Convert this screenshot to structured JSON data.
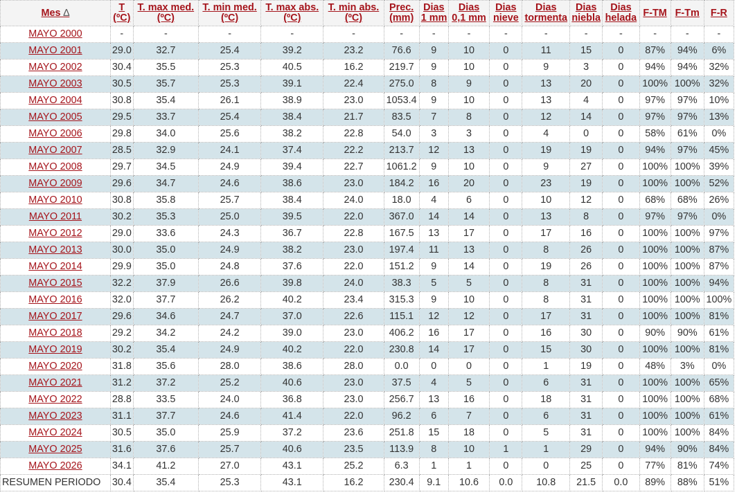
{
  "columns": [
    {
      "key": "mes",
      "l1": "Mes",
      "l2": "",
      "sort": "∆"
    },
    {
      "key": "t",
      "l1": "T",
      "l2": "(ºC)"
    },
    {
      "key": "tmaxmed",
      "l1": "T. max med.",
      "l2": "(ºC)"
    },
    {
      "key": "tminmed",
      "l1": "T. min med.",
      "l2": "(ºC)"
    },
    {
      "key": "tmaxabs",
      "l1": "T. max abs.",
      "l2": "(ºC)"
    },
    {
      "key": "tminabs",
      "l1": "T. min abs.",
      "l2": "(ºC)"
    },
    {
      "key": "prec",
      "l1": "Prec.",
      "l2": "(mm)"
    },
    {
      "key": "d1mm",
      "l1": "Dias",
      "l2": "1 mm"
    },
    {
      "key": "d01mm",
      "l1": "Dias",
      "l2": "0,1 mm"
    },
    {
      "key": "dnieve",
      "l1": "Dias",
      "l2": "nieve"
    },
    {
      "key": "dtormenta",
      "l1": "Dias",
      "l2": "tormenta"
    },
    {
      "key": "dniebla",
      "l1": "Dias",
      "l2": "niebla"
    },
    {
      "key": "dhelada",
      "l1": "Dias",
      "l2": "helada"
    },
    {
      "key": "ftm",
      "l1": "F-TM",
      "l2": ""
    },
    {
      "key": "ftm2",
      "l1": "F-Tm",
      "l2": ""
    },
    {
      "key": "fr",
      "l1": "F-R",
      "l2": ""
    }
  ],
  "rows": [
    [
      "MAYO 2000",
      "-",
      "-",
      "-",
      "-",
      "-",
      "-",
      "-",
      "-",
      "-",
      "-",
      "-",
      "-",
      "-",
      "-",
      "-"
    ],
    [
      "MAYO 2001",
      "29.0",
      "32.7",
      "25.4",
      "39.2",
      "23.2",
      "76.6",
      "9",
      "10",
      "0",
      "11",
      "15",
      "0",
      "87%",
      "94%",
      "6%"
    ],
    [
      "MAYO 2002",
      "30.4",
      "35.5",
      "25.3",
      "40.5",
      "16.2",
      "219.7",
      "9",
      "10",
      "0",
      "9",
      "3",
      "0",
      "94%",
      "94%",
      "32%"
    ],
    [
      "MAYO 2003",
      "30.5",
      "35.7",
      "25.3",
      "39.1",
      "22.4",
      "275.0",
      "8",
      "9",
      "0",
      "13",
      "20",
      "0",
      "100%",
      "100%",
      "32%"
    ],
    [
      "MAYO 2004",
      "30.8",
      "35.4",
      "26.1",
      "38.9",
      "23.0",
      "1053.4",
      "9",
      "10",
      "0",
      "13",
      "4",
      "0",
      "97%",
      "97%",
      "10%"
    ],
    [
      "MAYO 2005",
      "29.5",
      "33.7",
      "25.4",
      "38.4",
      "21.7",
      "83.5",
      "7",
      "8",
      "0",
      "12",
      "14",
      "0",
      "97%",
      "97%",
      "13%"
    ],
    [
      "MAYO 2006",
      "29.8",
      "34.0",
      "25.6",
      "38.2",
      "22.8",
      "54.0",
      "3",
      "3",
      "0",
      "4",
      "0",
      "0",
      "58%",
      "61%",
      "0%"
    ],
    [
      "MAYO 2007",
      "28.5",
      "32.9",
      "24.1",
      "37.4",
      "22.2",
      "213.7",
      "12",
      "13",
      "0",
      "19",
      "19",
      "0",
      "94%",
      "97%",
      "45%"
    ],
    [
      "MAYO 2008",
      "29.7",
      "34.5",
      "24.9",
      "39.4",
      "22.7",
      "1061.2",
      "9",
      "10",
      "0",
      "9",
      "27",
      "0",
      "100%",
      "100%",
      "39%"
    ],
    [
      "MAYO 2009",
      "29.6",
      "34.7",
      "24.6",
      "38.6",
      "23.0",
      "184.2",
      "16",
      "20",
      "0",
      "23",
      "19",
      "0",
      "100%",
      "100%",
      "52%"
    ],
    [
      "MAYO 2010",
      "30.8",
      "35.8",
      "25.7",
      "38.4",
      "24.0",
      "18.0",
      "4",
      "6",
      "0",
      "10",
      "12",
      "0",
      "68%",
      "68%",
      "26%"
    ],
    [
      "MAYO 2011",
      "30.2",
      "35.3",
      "25.0",
      "39.5",
      "22.0",
      "367.0",
      "14",
      "14",
      "0",
      "13",
      "8",
      "0",
      "97%",
      "97%",
      "0%"
    ],
    [
      "MAYO 2012",
      "29.0",
      "33.6",
      "24.3",
      "36.7",
      "22.8",
      "167.5",
      "13",
      "17",
      "0",
      "17",
      "16",
      "0",
      "100%",
      "100%",
      "97%"
    ],
    [
      "MAYO 2013",
      "30.0",
      "35.0",
      "24.9",
      "38.2",
      "23.0",
      "197.4",
      "11",
      "13",
      "0",
      "8",
      "26",
      "0",
      "100%",
      "100%",
      "87%"
    ],
    [
      "MAYO 2014",
      "29.9",
      "35.0",
      "24.8",
      "37.6",
      "22.0",
      "151.2",
      "9",
      "14",
      "0",
      "19",
      "26",
      "0",
      "100%",
      "100%",
      "87%"
    ],
    [
      "MAYO 2015",
      "32.2",
      "37.9",
      "26.6",
      "39.8",
      "24.0",
      "38.3",
      "5",
      "5",
      "0",
      "8",
      "31",
      "0",
      "100%",
      "100%",
      "94%"
    ],
    [
      "MAYO 2016",
      "32.0",
      "37.7",
      "26.2",
      "40.2",
      "23.4",
      "315.3",
      "9",
      "10",
      "0",
      "8",
      "31",
      "0",
      "100%",
      "100%",
      "100%"
    ],
    [
      "MAYO 2017",
      "29.6",
      "34.6",
      "24.7",
      "37.0",
      "22.6",
      "115.1",
      "12",
      "12",
      "0",
      "17",
      "31",
      "0",
      "100%",
      "100%",
      "81%"
    ],
    [
      "MAYO 2018",
      "29.2",
      "34.2",
      "24.2",
      "39.0",
      "23.0",
      "406.2",
      "16",
      "17",
      "0",
      "16",
      "30",
      "0",
      "90%",
      "90%",
      "61%"
    ],
    [
      "MAYO 2019",
      "30.2",
      "35.4",
      "24.9",
      "40.2",
      "22.0",
      "230.8",
      "14",
      "17",
      "0",
      "15",
      "30",
      "0",
      "100%",
      "100%",
      "81%"
    ],
    [
      "MAYO 2020",
      "31.8",
      "35.6",
      "28.0",
      "38.6",
      "28.0",
      "0.0",
      "0",
      "0",
      "0",
      "1",
      "19",
      "0",
      "48%",
      "3%",
      "0%"
    ],
    [
      "MAYO 2021",
      "31.2",
      "37.2",
      "25.2",
      "40.6",
      "23.0",
      "37.5",
      "4",
      "5",
      "0",
      "6",
      "31",
      "0",
      "100%",
      "100%",
      "65%"
    ],
    [
      "MAYO 2022",
      "28.8",
      "33.5",
      "24.0",
      "36.8",
      "23.0",
      "256.7",
      "13",
      "16",
      "0",
      "18",
      "31",
      "0",
      "100%",
      "100%",
      "68%"
    ],
    [
      "MAYO 2023",
      "31.1",
      "37.7",
      "24.6",
      "41.4",
      "22.0",
      "96.2",
      "6",
      "7",
      "0",
      "6",
      "31",
      "0",
      "100%",
      "100%",
      "61%"
    ],
    [
      "MAYO 2024",
      "30.5",
      "35.0",
      "25.9",
      "37.2",
      "23.6",
      "251.8",
      "15",
      "18",
      "0",
      "5",
      "31",
      "0",
      "100%",
      "100%",
      "84%"
    ],
    [
      "MAYO 2025",
      "31.6",
      "37.6",
      "25.7",
      "40.6",
      "23.5",
      "113.9",
      "8",
      "10",
      "1",
      "1",
      "29",
      "0",
      "94%",
      "90%",
      "84%"
    ],
    [
      "MAYO 2026",
      "34.1",
      "41.2",
      "27.0",
      "43.1",
      "25.2",
      "6.3",
      "1",
      "1",
      "0",
      "0",
      "25",
      "0",
      "77%",
      "81%",
      "74%"
    ]
  ],
  "summary": [
    "RESUMEN PERIODO",
    "30.4",
    "35.4",
    "25.3",
    "43.1",
    "16.2",
    "230.4",
    "9.1",
    "10.6",
    "0.0",
    "10.8",
    "21.5",
    "0.0",
    "89%",
    "88%",
    "51%"
  ]
}
